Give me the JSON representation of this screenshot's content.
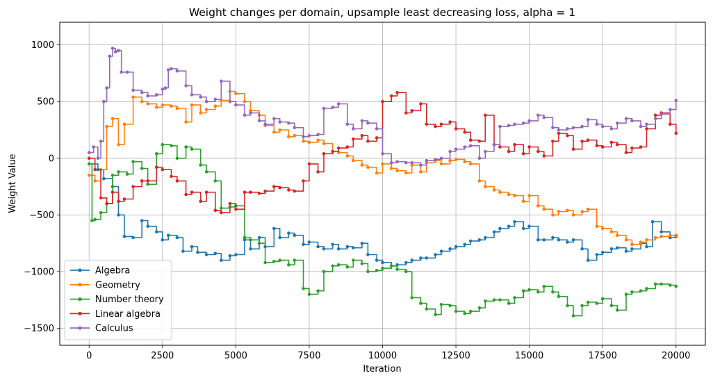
{
  "chart_data": {
    "type": "line",
    "title": "Weight changes per domain, upsample least decreasing loss, alpha = 1",
    "xlabel": "Iteration",
    "ylabel": "Weight Value",
    "xlim": [
      -1000,
      21000
    ],
    "ylim": [
      -1650,
      1200
    ],
    "xticks": [
      0,
      2500,
      5000,
      7500,
      10000,
      12500,
      15000,
      17500,
      20000
    ],
    "xtick_labels": [
      "0",
      "2500",
      "5000",
      "7500",
      "10000",
      "12500",
      "15000",
      "17500",
      "20000"
    ],
    "yticks": [
      -1500,
      -1000,
      -500,
      0,
      500,
      1000
    ],
    "ytick_labels": [
      "−1500",
      "−1000",
      "−500",
      "0",
      "500",
      "1000"
    ],
    "grid": true,
    "legend_position": "lower-left",
    "series": [
      {
        "name": "Algebra",
        "color": "#1f77b4",
        "x": [
          0,
          300,
          500,
          800,
          1000,
          1200,
          1500,
          1800,
          2000,
          2300,
          2500,
          2700,
          3000,
          3200,
          3500,
          3700,
          4000,
          4300,
          4500,
          4800,
          5000,
          5300,
          5500,
          5800,
          6000,
          6300,
          6500,
          6800,
          7000,
          7300,
          7500,
          7800,
          8000,
          8300,
          8500,
          8800,
          9000,
          9300,
          9500,
          9800,
          10000,
          10300,
          10500,
          10800,
          11000,
          11300,
          11500,
          11800,
          12000,
          12300,
          12500,
          12800,
          13000,
          13300,
          13500,
          13800,
          14000,
          14300,
          14500,
          14800,
          15000,
          15300,
          15500,
          15800,
          16000,
          16300,
          16500,
          16800,
          17000,
          17300,
          17500,
          17800,
          18000,
          18300,
          18500,
          18800,
          19000,
          19200,
          19500,
          19800,
          20000
        ],
        "y": [
          -50,
          -100,
          -180,
          -250,
          -500,
          -690,
          -700,
          -550,
          -600,
          -650,
          -720,
          -680,
          -700,
          -820,
          -780,
          -830,
          -850,
          -840,
          -900,
          -860,
          -850,
          -720,
          -800,
          -700,
          -780,
          -620,
          -700,
          -660,
          -680,
          -760,
          -740,
          -780,
          -800,
          -760,
          -800,
          -780,
          -790,
          -750,
          -850,
          -900,
          -920,
          -950,
          -940,
          -920,
          -900,
          -880,
          -880,
          -850,
          -820,
          -800,
          -780,
          -760,
          -730,
          -720,
          -700,
          -650,
          -620,
          -600,
          -560,
          -620,
          -600,
          -720,
          -720,
          -700,
          -720,
          -740,
          -720,
          -800,
          -900,
          -850,
          -830,
          -800,
          -790,
          -820,
          -800,
          -750,
          -780,
          -560,
          -650,
          -700,
          -690
        ]
      },
      {
        "name": "Geometry",
        "color": "#ff7f0e",
        "x": [
          0,
          200,
          400,
          600,
          800,
          1000,
          1200,
          1500,
          1800,
          2000,
          2300,
          2500,
          2800,
          3000,
          3300,
          3500,
          3800,
          4000,
          4300,
          4500,
          4800,
          5000,
          5300,
          5500,
          5800,
          6000,
          6300,
          6500,
          6800,
          7000,
          7300,
          7500,
          7800,
          8000,
          8300,
          8500,
          8800,
          9000,
          9300,
          9500,
          9800,
          10000,
          10300,
          10500,
          10800,
          11000,
          11300,
          11500,
          11800,
          12000,
          12300,
          12500,
          12800,
          13000,
          13300,
          13500,
          13800,
          14000,
          14300,
          14500,
          14800,
          15000,
          15300,
          15500,
          15800,
          16000,
          16300,
          16500,
          16800,
          17000,
          17300,
          17500,
          17800,
          18000,
          18300,
          18500,
          18800,
          19000,
          19300,
          19500,
          19800,
          20000
        ],
        "y": [
          -150,
          -200,
          -100,
          280,
          350,
          120,
          300,
          540,
          500,
          480,
          450,
          470,
          460,
          440,
          320,
          470,
          400,
          430,
          460,
          510,
          590,
          570,
          500,
          420,
          380,
          290,
          230,
          250,
          190,
          200,
          150,
          140,
          160,
          130,
          60,
          50,
          20,
          -20,
          -60,
          -80,
          -130,
          -50,
          -90,
          -110,
          -130,
          -60,
          -120,
          -40,
          -20,
          -50,
          -20,
          -10,
          -30,
          -50,
          -200,
          -250,
          -280,
          -300,
          -320,
          -330,
          -380,
          -330,
          -420,
          -450,
          -500,
          -470,
          -460,
          -500,
          -470,
          -450,
          -600,
          -620,
          -650,
          -680,
          -720,
          -760,
          -740,
          -720,
          -700,
          -690,
          -680,
          -680
        ]
      },
      {
        "name": "Number theory",
        "color": "#2ca02c",
        "x": [
          0,
          100,
          200,
          400,
          600,
          800,
          1000,
          1300,
          1500,
          1800,
          2000,
          2300,
          2500,
          2800,
          3000,
          3300,
          3500,
          3800,
          4000,
          4300,
          4500,
          4800,
          5000,
          5300,
          5500,
          5800,
          6000,
          6300,
          6500,
          6800,
          7000,
          7300,
          7500,
          7800,
          8000,
          8300,
          8500,
          8800,
          9000,
          9300,
          9500,
          9800,
          10000,
          10300,
          10500,
          10800,
          11000,
          11300,
          11500,
          11800,
          12000,
          12300,
          12500,
          12800,
          13000,
          13300,
          13500,
          13800,
          14000,
          14300,
          14500,
          14800,
          15000,
          15300,
          15500,
          15800,
          16000,
          16300,
          16500,
          16800,
          17000,
          17300,
          17500,
          17800,
          18000,
          18300,
          18500,
          18800,
          19000,
          19300,
          19500,
          19800,
          20000
        ],
        "y": [
          -50,
          -550,
          -540,
          -480,
          -400,
          -150,
          -120,
          -140,
          -30,
          -90,
          -230,
          40,
          120,
          110,
          0,
          100,
          80,
          -60,
          -120,
          -200,
          -440,
          -430,
          -420,
          -700,
          -720,
          -750,
          -920,
          -910,
          -900,
          -940,
          -900,
          -1150,
          -1200,
          -1170,
          -1000,
          -950,
          -940,
          -960,
          -900,
          -930,
          -1000,
          -990,
          -970,
          -950,
          -980,
          -1000,
          -1230,
          -1280,
          -1330,
          -1380,
          -1290,
          -1300,
          -1350,
          -1370,
          -1350,
          -1320,
          -1260,
          -1250,
          -1250,
          -1280,
          -1230,
          -1170,
          -1160,
          -1180,
          -1130,
          -1180,
          -1220,
          -1300,
          -1390,
          -1300,
          -1270,
          -1280,
          -1240,
          -1300,
          -1340,
          -1200,
          -1180,
          -1170,
          -1150,
          -1110,
          -1110,
          -1120,
          -1130
        ]
      },
      {
        "name": "Linear algebra",
        "color": "#d62728",
        "x": [
          0,
          200,
          400,
          600,
          800,
          1000,
          1200,
          1500,
          1800,
          2000,
          2300,
          2500,
          2800,
          3000,
          3300,
          3500,
          3800,
          4000,
          4300,
          4500,
          4800,
          5000,
          5300,
          5500,
          5800,
          6000,
          6300,
          6500,
          6800,
          7000,
          7300,
          7500,
          7800,
          8000,
          8300,
          8500,
          8800,
          9000,
          9300,
          9500,
          9800,
          10000,
          10300,
          10500,
          10800,
          11000,
          11300,
          11500,
          11800,
          12000,
          12300,
          12500,
          12800,
          13000,
          13300,
          13500,
          13800,
          14000,
          14300,
          14500,
          14800,
          15000,
          15300,
          15500,
          15800,
          16000,
          16300,
          16500,
          16800,
          17000,
          17300,
          17500,
          17800,
          18000,
          18300,
          18500,
          18800,
          19000,
          19300,
          19500,
          19800,
          20000
        ],
        "y": [
          0,
          -100,
          -350,
          -400,
          -300,
          -380,
          -360,
          -250,
          -200,
          -200,
          -80,
          -100,
          -160,
          -200,
          -320,
          -300,
          -380,
          -300,
          -460,
          -480,
          -400,
          -450,
          -300,
          -300,
          -310,
          -290,
          -250,
          -260,
          -280,
          -290,
          -200,
          -50,
          -120,
          40,
          60,
          90,
          100,
          170,
          200,
          150,
          180,
          500,
          550,
          580,
          400,
          420,
          480,
          300,
          280,
          300,
          320,
          260,
          230,
          160,
          150,
          380,
          120,
          100,
          60,
          120,
          40,
          100,
          60,
          20,
          150,
          220,
          200,
          80,
          150,
          160,
          110,
          100,
          140,
          120,
          50,
          90,
          100,
          260,
          380,
          400,
          300,
          220
        ]
      },
      {
        "name": "Calculus",
        "color": "#9467bd",
        "x": [
          0,
          150,
          300,
          400,
          500,
          600,
          700,
          800,
          900,
          1000,
          1100,
          1300,
          1500,
          1800,
          2000,
          2300,
          2500,
          2600,
          2700,
          2800,
          3000,
          3300,
          3500,
          3800,
          4000,
          4300,
          4500,
          4800,
          5000,
          5300,
          5500,
          5800,
          6000,
          6300,
          6500,
          6800,
          7000,
          7300,
          7500,
          7800,
          8000,
          8300,
          8500,
          8800,
          9000,
          9300,
          9500,
          9800,
          10000,
          10300,
          10500,
          10800,
          11000,
          11300,
          11500,
          11800,
          12000,
          12300,
          12500,
          12800,
          13000,
          13300,
          13500,
          13800,
          14000,
          14300,
          14500,
          14800,
          15000,
          15300,
          15500,
          15800,
          16000,
          16300,
          16500,
          16800,
          17000,
          17300,
          17500,
          17800,
          18000,
          18300,
          18500,
          18800,
          19000,
          19300,
          19500,
          19800,
          20000
        ],
        "y": [
          50,
          100,
          0,
          150,
          500,
          620,
          900,
          970,
          940,
          950,
          760,
          760,
          600,
          580,
          550,
          560,
          610,
          620,
          780,
          790,
          770,
          640,
          560,
          540,
          500,
          520,
          680,
          500,
          470,
          380,
          400,
          330,
          300,
          350,
          320,
          310,
          270,
          190,
          200,
          210,
          440,
          450,
          480,
          300,
          260,
          330,
          310,
          260,
          40,
          -40,
          -30,
          -40,
          -40,
          -60,
          -20,
          -10,
          0,
          60,
          80,
          100,
          110,
          0,
          60,
          120,
          280,
          290,
          300,
          310,
          330,
          380,
          360,
          270,
          250,
          260,
          270,
          280,
          340,
          300,
          280,
          260,
          310,
          350,
          330,
          280,
          300,
          350,
          390,
          430,
          510
        ]
      }
    ]
  }
}
